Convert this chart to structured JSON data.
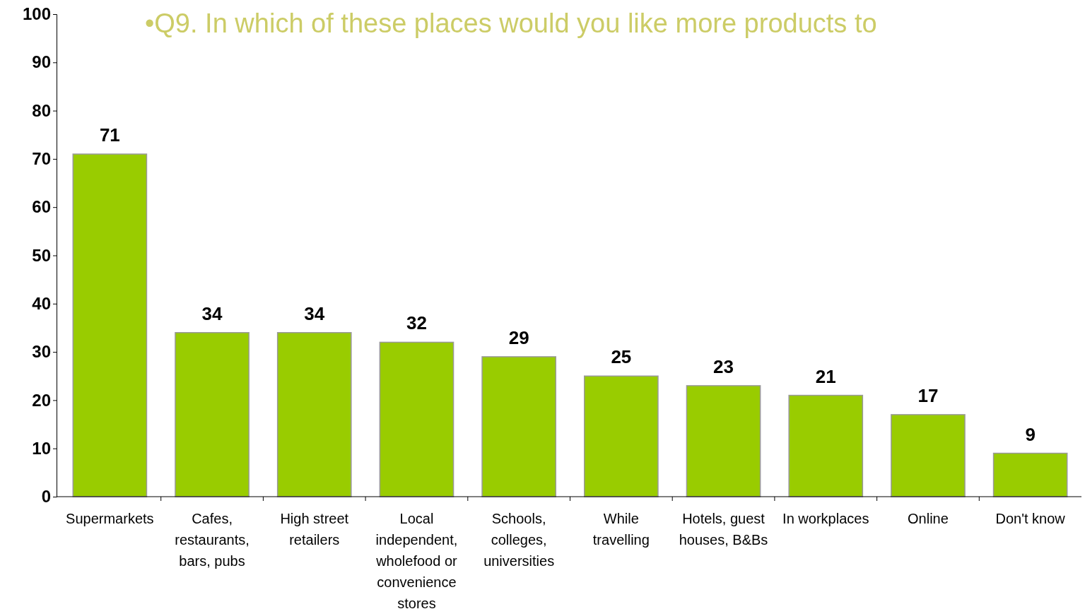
{
  "chart_data": {
    "type": "bar",
    "title": "•Q9. In which of these places would you like more products to",
    "categories": [
      "Supermarkets",
      "Cafes, restaurants, bars, pubs",
      "High street retailers",
      "Local independent, wholefood or convenience stores",
      "Schools, colleges, universities",
      "While travelling",
      "Hotels, guest houses, B&Bs",
      "In workplaces",
      "Online",
      "Don't know"
    ],
    "values": [
      71,
      34,
      34,
      32,
      29,
      25,
      23,
      21,
      17,
      9
    ],
    "color": "#99cc00",
    "ylim": [
      0,
      100
    ],
    "yticks": [
      0,
      10,
      20,
      30,
      40,
      50,
      60,
      70,
      80,
      90,
      100
    ],
    "grid": false,
    "data_labels": true
  }
}
